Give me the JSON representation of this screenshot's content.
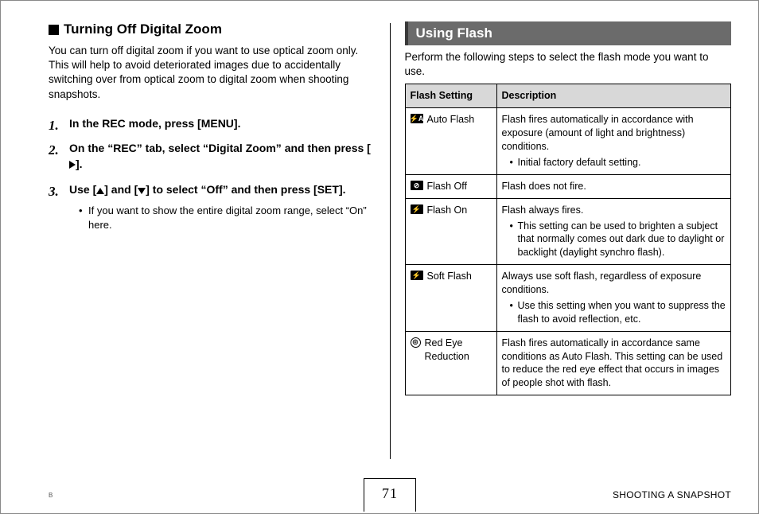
{
  "left": {
    "heading": "Turning Off Digital Zoom",
    "intro": "You can turn off digital zoom if you want to use optical zoom only. This will help to avoid deteriorated images due to accidentally switching over from optical zoom to digital zoom when shooting snapshots.",
    "steps": [
      {
        "text": "In the REC mode, press [MENU]."
      },
      {
        "prefix": "On the “REC” tab, select “Digital Zoom” and then press [",
        "suffix": "]."
      },
      {
        "prefix": "Use [",
        "mid": "] and [",
        "suffix": "] to select “Off” and then press [SET].",
        "note": "If you want to show the entire digital zoom range, select “On” here."
      }
    ]
  },
  "right": {
    "section_title": "Using Flash",
    "intro": "Perform the following steps to select the flash mode you want to use.",
    "table": {
      "headers": [
        "Flash Setting",
        "Description"
      ],
      "rows": [
        {
          "icon": "⚡A",
          "label": "Auto Flash",
          "desc": "Flash fires automatically in accordance with exposure (amount of light and brightness) conditions.",
          "bullet": "Initial factory default setting."
        },
        {
          "icon": "⊘",
          "label": "Flash Off",
          "desc": "Flash does not fire."
        },
        {
          "icon": "⚡",
          "label": "Flash On",
          "desc": "Flash always fires.",
          "bullet": "This setting can be used to brighten a subject that normally comes out dark due to daylight or backlight (daylight synchro flash)."
        },
        {
          "icon": "⚡",
          "label": "Soft Flash",
          "desc": "Always use soft flash, regardless of exposure conditions.",
          "bullet": "Use this setting when you want to suppress the flash to avoid reflection, etc."
        },
        {
          "icon_style": "white-circle",
          "icon": "◎",
          "label": "Red Eye Reduction",
          "desc": "Flash fires automatically in accordance same conditions as Auto Flash. This setting can be used to reduce the red eye effect that occurs in images of people shot with flash."
        }
      ]
    }
  },
  "footer": {
    "corner": "B",
    "page_number": "71",
    "section_name": "SHOOTING A SNAPSHOT"
  }
}
